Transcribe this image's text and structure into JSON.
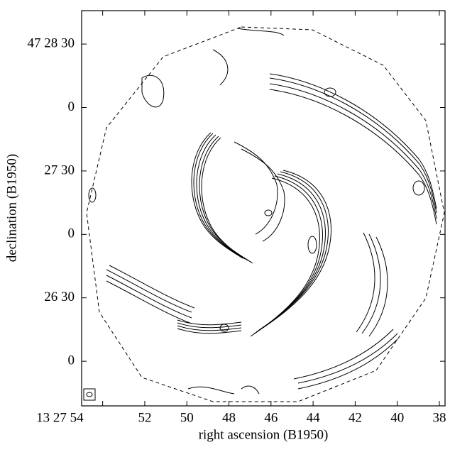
{
  "chart_data": {
    "type": "contour",
    "xlabel": "right ascension (B1950)",
    "ylabel": "declination (B1950)",
    "xlim": [
      55.0,
      37.73
    ],
    "xticks": [
      {
        "value": 54,
        "label": "13 27 54"
      },
      52,
      50,
      48,
      46,
      44,
      42,
      40,
      38
    ],
    "ylim": [
      -21.1,
      165.8
    ],
    "yticks": [
      {
        "value": 150,
        "label": "47 28 30"
      },
      {
        "value": 120,
        "label": "0"
      },
      {
        "value": 90,
        "label": "27 30"
      },
      {
        "value": 60,
        "label": "0"
      },
      {
        "value": 30,
        "label": "26 30"
      },
      {
        "value": 0,
        "label": "0"
      }
    ],
    "color": "#000000"
  }
}
